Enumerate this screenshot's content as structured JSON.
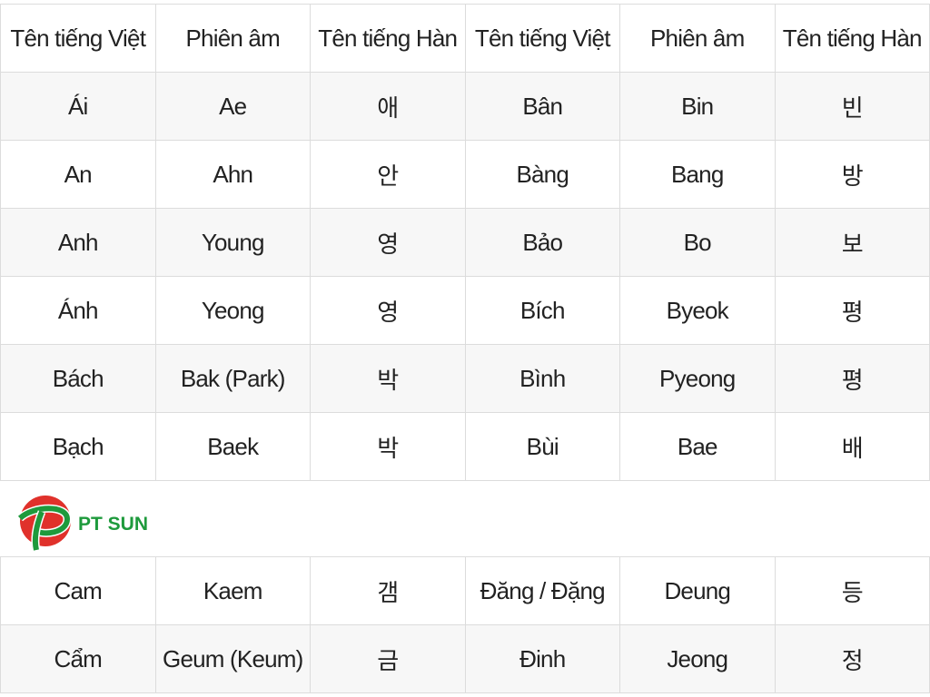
{
  "logo": {
    "text": "PT SUN",
    "colors": {
      "red": "#e0312b",
      "green": "#1e9a3c"
    }
  },
  "table1": {
    "headers": [
      "Tên tiếng Việt",
      "Phiên âm",
      "Tên tiếng Hàn",
      "Tên tiếng Việt",
      "Phiên âm",
      "Tên tiếng Hàn"
    ],
    "rows": [
      [
        "Ái",
        "Ae",
        "애",
        "Bân",
        "Bin",
        "빈"
      ],
      [
        "An",
        "Ahn",
        "안",
        "Bàng",
        "Bang",
        "방"
      ],
      [
        "Anh",
        "Young",
        "영",
        "Bảo",
        "Bo",
        "보"
      ],
      [
        "Ánh",
        "Yeong",
        "영",
        "Bích",
        "Byeok",
        "평"
      ],
      [
        "Bách",
        "Bak (Park)",
        "박",
        "Bình",
        "Pyeong",
        "평"
      ],
      [
        "Bạch",
        "Baek",
        "박",
        "Bùi",
        "Bae",
        "배"
      ]
    ]
  },
  "table2": {
    "rows": [
      [
        "Cam",
        "Kaem",
        "갬",
        "Đăng / Đặng",
        "Deung",
        "등"
      ],
      [
        "Cẩm",
        "Geum (Keum)",
        "금",
        "Đinh",
        "Jeong",
        "정"
      ]
    ]
  },
  "colors": {
    "stripe": "#f7f7f7",
    "border": "#dcdcdc",
    "text": "#222222"
  }
}
